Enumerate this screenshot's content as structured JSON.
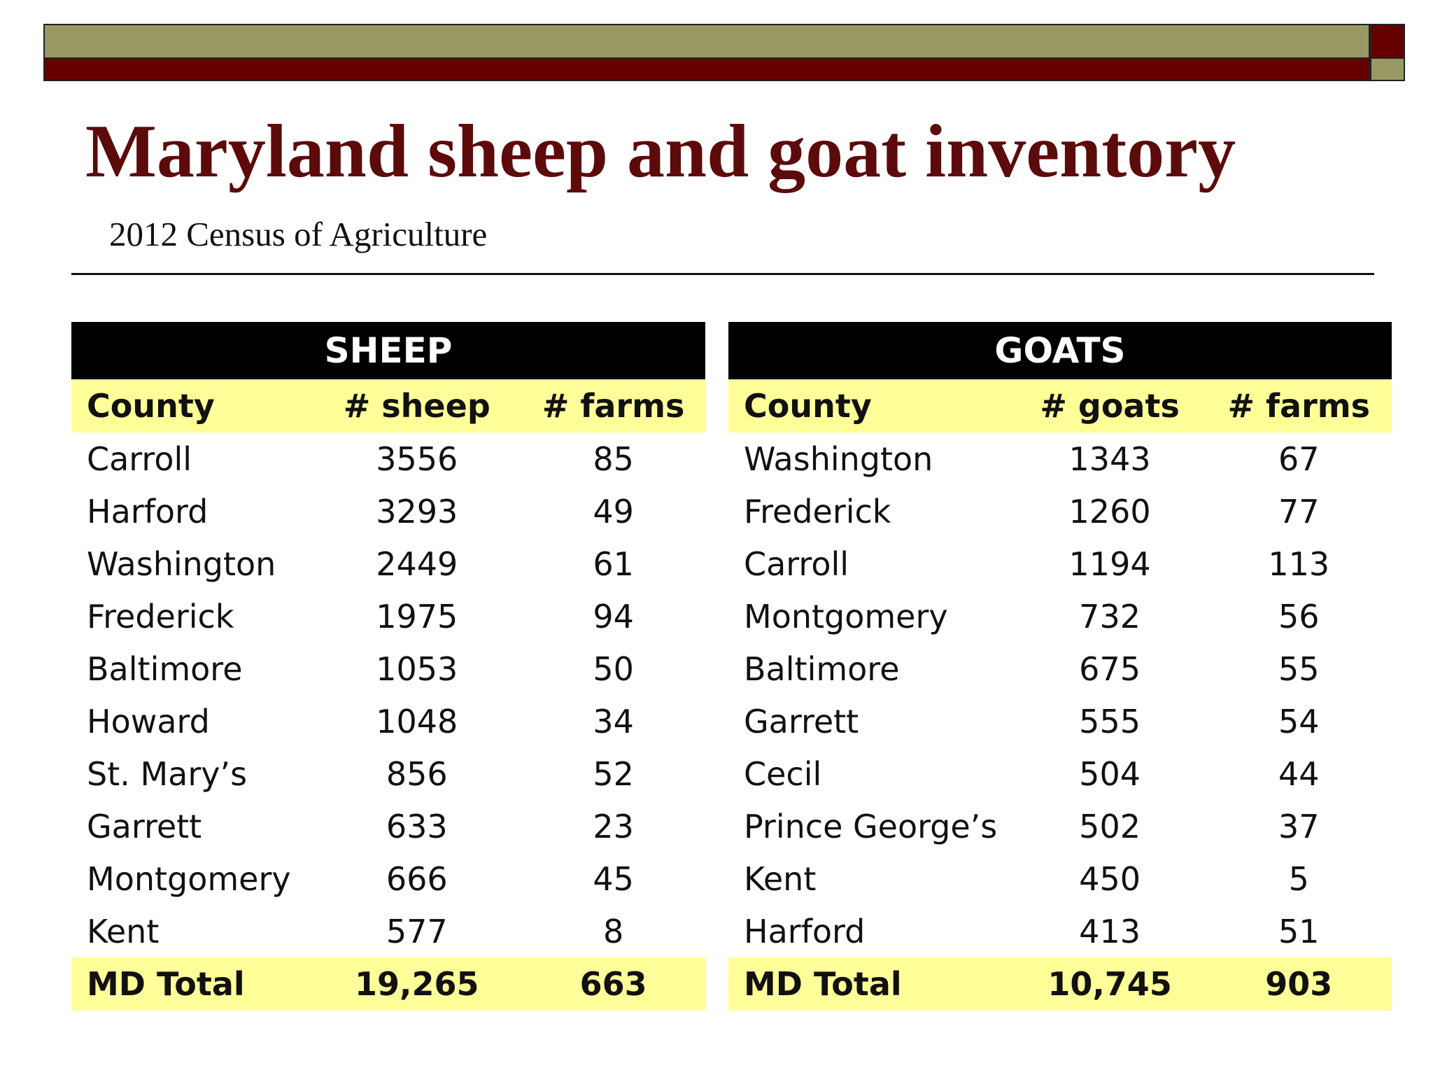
{
  "slide": {
    "title": "Maryland sheep and goat inventory",
    "subtitle": "2012 Census of Agriculture",
    "colors": {
      "bar_olive": "#999966",
      "bar_red": "#660000",
      "title": "#5c0a0a",
      "header_bg": "#000000",
      "highlight_bg": "#ffff99"
    }
  },
  "sheep": {
    "heading": "SHEEP",
    "columns": [
      "County",
      "# sheep",
      "# farms"
    ],
    "rows": [
      [
        "Carroll",
        "3556",
        "85"
      ],
      [
        "Harford",
        "3293",
        "49"
      ],
      [
        "Washington",
        "2449",
        "61"
      ],
      [
        "Frederick",
        "1975",
        "94"
      ],
      [
        "Baltimore",
        "1053",
        "50"
      ],
      [
        "Howard",
        "1048",
        "34"
      ],
      [
        "St. Mary’s",
        "856",
        "52"
      ],
      [
        "Garrett",
        "633",
        "23"
      ],
      [
        "Montgomery",
        "666",
        "45"
      ],
      [
        "Kent",
        "577",
        "8"
      ]
    ],
    "total": [
      "MD Total",
      "19,265",
      "663"
    ]
  },
  "goats": {
    "heading": "GOATS",
    "columns": [
      "County",
      "# goats",
      "# farms"
    ],
    "rows": [
      [
        "Washington",
        "1343",
        "67"
      ],
      [
        "Frederick",
        "1260",
        "77"
      ],
      [
        "Carroll",
        "1194",
        "113"
      ],
      [
        "Montgomery",
        "732",
        "56"
      ],
      [
        "Baltimore",
        "675",
        "55"
      ],
      [
        "Garrett",
        "555",
        "54"
      ],
      [
        "Cecil",
        "504",
        "44"
      ],
      [
        "Prince George’s",
        "502",
        "37"
      ],
      [
        "Kent",
        "450",
        "5"
      ],
      [
        "Harford",
        "413",
        "51"
      ]
    ],
    "total": [
      "MD Total",
      "10,745",
      "903"
    ]
  }
}
